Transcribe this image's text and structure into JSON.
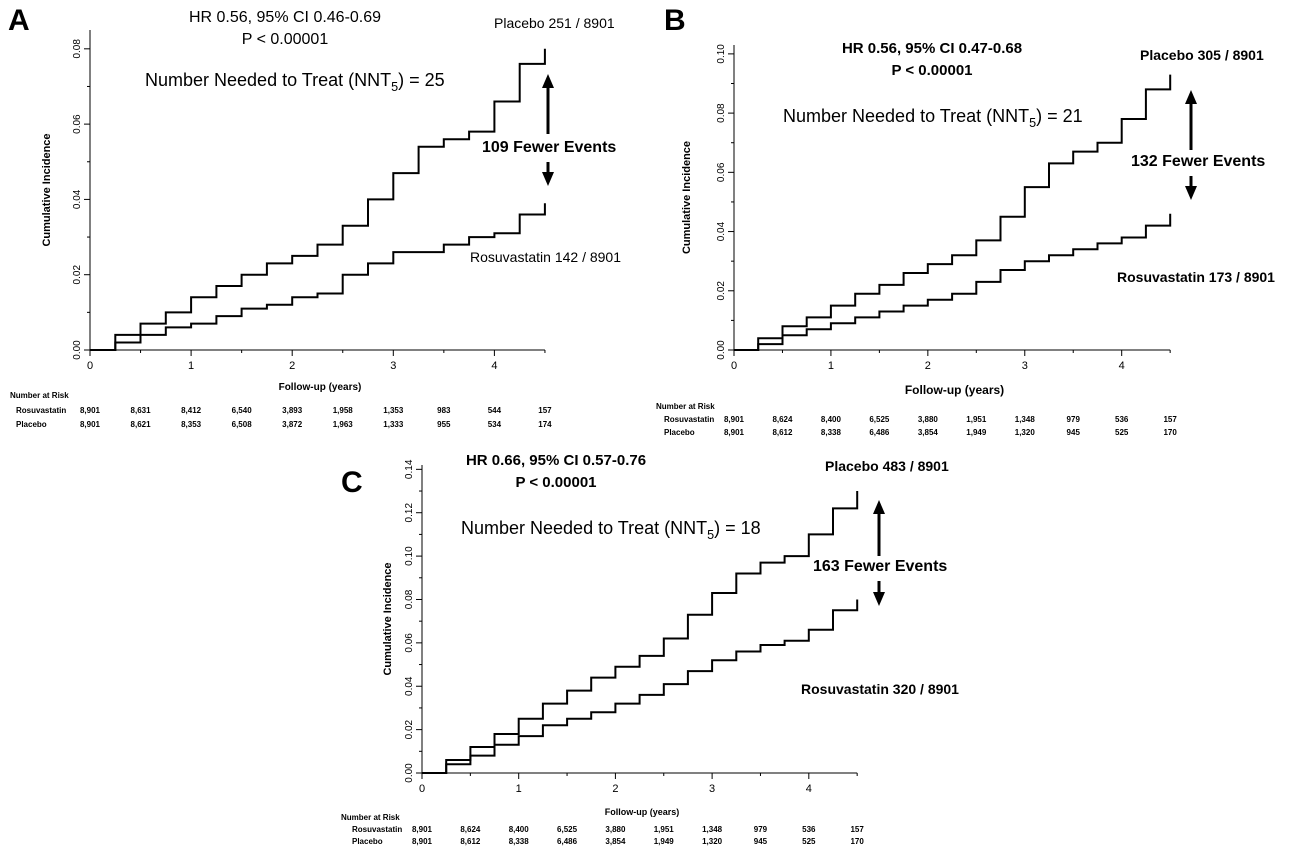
{
  "chart_data": [
    {
      "panel_label": "A",
      "type": "line",
      "title": "HR 0.56, 95% CI 0.46-0.69",
      "subtitle": "P < 0.00001",
      "annotation_nnt": {
        "prefix": "Number Needed to Treat (NNT",
        "sub": "5",
        "suffix": ") = 25"
      },
      "annotation_fewer": "109 Fewer Events",
      "xlabel": "Follow-up (years)",
      "ylabel": "Cumulative Incidence",
      "xlim": [
        0,
        4.55
      ],
      "ylim": [
        0,
        0.085
      ],
      "xticks": [
        0,
        1,
        2,
        3,
        4
      ],
      "xtick_labels": [
        "0",
        "1",
        "2",
        "3",
        "4"
      ],
      "yticks": [
        0,
        0.02,
        0.04,
        0.06,
        0.08
      ],
      "ytick_labels": [
        "0.00",
        "0.02",
        "0.04",
        "0.06",
        "0.08"
      ],
      "series": [
        {
          "name": "Placebo 251 / 8901",
          "x": [
            0,
            0.25,
            0.5,
            0.75,
            1.0,
            1.25,
            1.5,
            1.75,
            2.0,
            2.25,
            2.5,
            2.75,
            3.0,
            3.25,
            3.5,
            3.75,
            4.0,
            4.25,
            4.5
          ],
          "y": [
            0,
            0.004,
            0.007,
            0.01,
            0.014,
            0.017,
            0.02,
            0.023,
            0.025,
            0.028,
            0.033,
            0.04,
            0.047,
            0.054,
            0.056,
            0.058,
            0.066,
            0.076,
            0.08
          ]
        },
        {
          "name": "Rosuvastatin 142 / 8901",
          "x": [
            0,
            0.25,
            0.5,
            0.75,
            1.0,
            1.25,
            1.5,
            1.75,
            2.0,
            2.25,
            2.5,
            2.75,
            3.0,
            3.25,
            3.5,
            3.75,
            4.0,
            4.25,
            4.5
          ],
          "y": [
            0,
            0.002,
            0.004,
            0.006,
            0.007,
            0.009,
            0.011,
            0.012,
            0.014,
            0.015,
            0.02,
            0.023,
            0.026,
            0.026,
            0.028,
            0.03,
            0.031,
            0.036,
            0.039
          ]
        }
      ],
      "risk_table": {
        "header": "Number at Risk",
        "rows": [
          {
            "label": "Rosuvastatin",
            "values": [
              "8,901",
              "8,631",
              "8,412",
              "6,540",
              "3,893",
              "1,958",
              "1,353",
              "983",
              "544",
              "157"
            ]
          },
          {
            "label": "Placebo",
            "values": [
              "8,901",
              "8,621",
              "8,353",
              "6,508",
              "3,872",
              "1,963",
              "1,333",
              "955",
              "534",
              "174"
            ]
          }
        ]
      }
    },
    {
      "panel_label": "B",
      "type": "line",
      "title": "HR 0.56, 95% CI 0.47-0.68",
      "subtitle": "P < 0.00001",
      "annotation_nnt": {
        "prefix": "Number Needed to Treat (NNT",
        "sub": "5",
        "suffix": ") = 21"
      },
      "annotation_fewer": "132 Fewer Events",
      "xlabel": "Follow-up (years)",
      "ylabel": "Cumulative Incidence",
      "xlim": [
        0,
        4.55
      ],
      "ylim": [
        0,
        0.103
      ],
      "xticks": [
        0,
        1,
        2,
        3,
        4
      ],
      "xtick_labels": [
        "0",
        "1",
        "2",
        "3",
        "4"
      ],
      "yticks": [
        0,
        0.02,
        0.04,
        0.06,
        0.08,
        0.1
      ],
      "ytick_labels": [
        "0.00",
        "0.02",
        "0.04",
        "0.06",
        "0.08",
        "0.10"
      ],
      "series": [
        {
          "name": "Placebo 305 / 8901",
          "x": [
            0,
            0.25,
            0.5,
            0.75,
            1.0,
            1.25,
            1.5,
            1.75,
            2.0,
            2.25,
            2.5,
            2.75,
            3.0,
            3.25,
            3.5,
            3.75,
            4.0,
            4.25,
            4.5
          ],
          "y": [
            0,
            0.004,
            0.008,
            0.011,
            0.015,
            0.019,
            0.022,
            0.026,
            0.029,
            0.032,
            0.037,
            0.045,
            0.055,
            0.063,
            0.067,
            0.07,
            0.078,
            0.088,
            0.093
          ]
        },
        {
          "name": "Rosuvastatin 173 / 8901",
          "x": [
            0,
            0.25,
            0.5,
            0.75,
            1.0,
            1.25,
            1.5,
            1.75,
            2.0,
            2.25,
            2.5,
            2.75,
            3.0,
            3.25,
            3.5,
            3.75,
            4.0,
            4.25,
            4.5
          ],
          "y": [
            0,
            0.002,
            0.005,
            0.007,
            0.009,
            0.011,
            0.013,
            0.015,
            0.017,
            0.019,
            0.023,
            0.027,
            0.03,
            0.032,
            0.034,
            0.036,
            0.038,
            0.042,
            0.046
          ]
        }
      ],
      "risk_table": {
        "header": "Number at Risk",
        "rows": [
          {
            "label": "Rosuvastatin",
            "values": [
              "8,901",
              "8,624",
              "8,400",
              "6,525",
              "3,880",
              "1,951",
              "1,348",
              "979",
              "536",
              "157"
            ]
          },
          {
            "label": "Placebo",
            "values": [
              "8,901",
              "8,612",
              "8,338",
              "6,486",
              "3,854",
              "1,949",
              "1,320",
              "945",
              "525",
              "170"
            ]
          }
        ]
      }
    },
    {
      "panel_label": "C",
      "type": "line",
      "title": "HR 0.66, 95% CI 0.57-0.76",
      "subtitle": "P < 0.00001",
      "annotation_nnt": {
        "prefix": "Number Needed to Treat (NNT",
        "sub": "5",
        "suffix": ") = 18"
      },
      "annotation_fewer": "163 Fewer Events",
      "xlabel": "Follow-up (years)",
      "ylabel": "Cumulative Incidence",
      "xlim": [
        0,
        4.55
      ],
      "ylim": [
        0,
        0.142
      ],
      "xticks": [
        0,
        1,
        2,
        3,
        4
      ],
      "xtick_labels": [
        "0",
        "1",
        "2",
        "3",
        "4"
      ],
      "yticks": [
        0,
        0.02,
        0.04,
        0.06,
        0.08,
        0.1,
        0.12,
        0.14
      ],
      "ytick_labels": [
        "0.00",
        "0.02",
        "0.04",
        "0.06",
        "0.08",
        "0.10",
        "0.12",
        "0.14"
      ],
      "series": [
        {
          "name": "Placebo 483 / 8901",
          "x": [
            0,
            0.25,
            0.5,
            0.75,
            1.0,
            1.25,
            1.5,
            1.75,
            2.0,
            2.25,
            2.5,
            2.75,
            3.0,
            3.25,
            3.5,
            3.75,
            4.0,
            4.25,
            4.5
          ],
          "y": [
            0,
            0.006,
            0.012,
            0.018,
            0.025,
            0.032,
            0.038,
            0.044,
            0.049,
            0.054,
            0.062,
            0.073,
            0.083,
            0.092,
            0.097,
            0.1,
            0.11,
            0.122,
            0.13
          ]
        },
        {
          "name": "Rosuvastatin 320 / 8901",
          "x": [
            0,
            0.25,
            0.5,
            0.75,
            1.0,
            1.25,
            1.5,
            1.75,
            2.0,
            2.25,
            2.5,
            2.75,
            3.0,
            3.25,
            3.5,
            3.75,
            4.0,
            4.25,
            4.5
          ],
          "y": [
            0,
            0.004,
            0.008,
            0.013,
            0.017,
            0.022,
            0.025,
            0.028,
            0.032,
            0.036,
            0.041,
            0.047,
            0.052,
            0.056,
            0.059,
            0.061,
            0.066,
            0.075,
            0.08
          ]
        }
      ],
      "risk_table": {
        "header": "Number at Risk",
        "rows": [
          {
            "label": "Rosuvastatin",
            "values": [
              "8,901",
              "8,624",
              "8,400",
              "6,525",
              "3,880",
              "1,951",
              "1,348",
              "979",
              "536",
              "157"
            ]
          },
          {
            "label": "Placebo",
            "values": [
              "8,901",
              "8,612",
              "8,338",
              "6,486",
              "3,854",
              "1,949",
              "1,320",
              "945",
              "525",
              "170"
            ]
          }
        ]
      }
    }
  ]
}
